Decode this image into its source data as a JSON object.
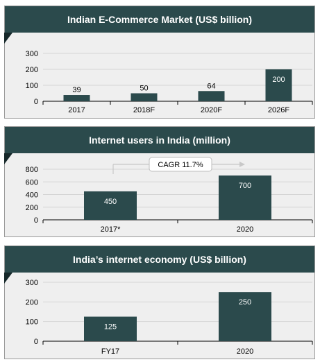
{
  "colors": {
    "bar": "#2b4a4c",
    "header": "#2b4a4c",
    "panel": "#efefef",
    "grid": "#d4d4d4"
  },
  "chart_data": [
    {
      "type": "bar",
      "title": "Indian E-Commerce Market (US$ billion)",
      "categories": [
        "2017",
        "2018F",
        "2020F",
        "2026F"
      ],
      "values": [
        39,
        50,
        64,
        200
      ],
      "yticks": [
        0,
        100,
        200,
        300
      ],
      "ylim": [
        0,
        300
      ],
      "grid": true
    },
    {
      "type": "bar",
      "title": "Internet users in India (million)",
      "categories": [
        "2017*",
        "2020"
      ],
      "values": [
        450,
        700
      ],
      "yticks": [
        0,
        200,
        400,
        600,
        800
      ],
      "ylim": [
        0,
        800
      ],
      "grid": true,
      "annotation": "CAGR 11.7%"
    },
    {
      "type": "bar",
      "title": "India’s internet economy (US$ billion)",
      "categories": [
        "FY17",
        "2020"
      ],
      "values": [
        125,
        250
      ],
      "yticks": [
        0,
        100,
        200,
        300
      ],
      "ylim": [
        0,
        300
      ],
      "grid": true
    }
  ]
}
